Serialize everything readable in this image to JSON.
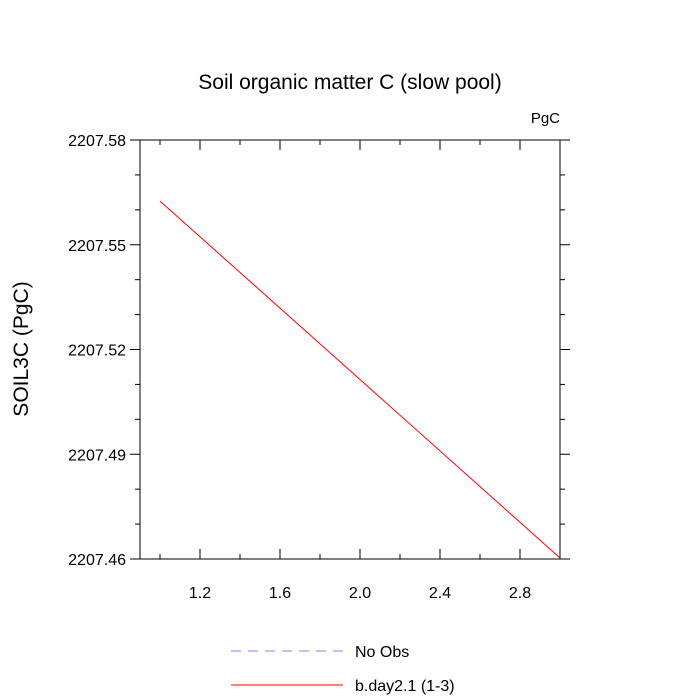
{
  "chart_data": {
    "type": "line",
    "title": "Soil organic matter C (slow pool)",
    "units_label": "PgC",
    "xlabel": "",
    "ylabel": "SOIL3C  (PgC)",
    "xlim": [
      0.9,
      3.0
    ],
    "ylim": [
      2207.46,
      2207.58
    ],
    "x_ticks": [
      1.2,
      1.6,
      2.0,
      2.4,
      2.8
    ],
    "x_tick_labels": [
      "1.2",
      "1.6",
      "2.0",
      "2.4",
      "2.8"
    ],
    "y_ticks": [
      2207.46,
      2207.49,
      2207.52,
      2207.55,
      2207.58
    ],
    "y_tick_labels": [
      "2207.46",
      "2207.49",
      "2207.52",
      "2207.55",
      "2207.58"
    ],
    "grid": false,
    "legend_position": "bottom",
    "series": [
      {
        "name": "No Obs",
        "style": "dashed",
        "color": "#8080ff",
        "x": [],
        "y": []
      },
      {
        "name": "b.day2.1 (1-3)",
        "style": "solid",
        "color": "#ff0000",
        "x": [
          1.0,
          3.0
        ],
        "y": [
          2207.5625,
          2207.4603
        ]
      }
    ]
  }
}
